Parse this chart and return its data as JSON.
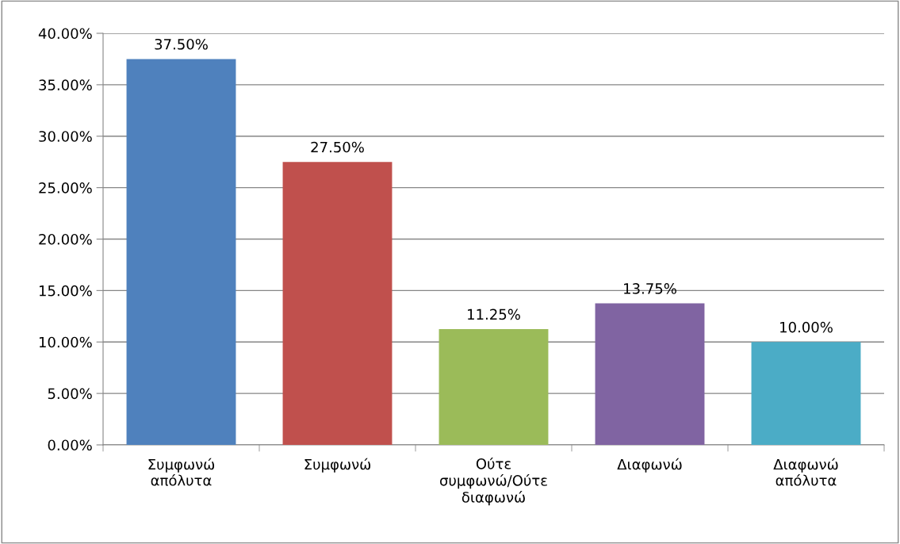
{
  "chart_data": {
    "type": "bar",
    "categories": [
      "Συμφωνώ\nαπόλυτα",
      "Συμφωνώ",
      "Ούτε\nσυμφωνώ/Ούτε\nδιαφωνώ",
      "Διαφωνώ",
      "Διαφωνώ\nαπόλυτα"
    ],
    "values": [
      37.5,
      27.5,
      11.25,
      13.75,
      10.0
    ],
    "colors": [
      "#4f81bd",
      "#c0504d",
      "#9bbb59",
      "#8064a2",
      "#4bacc6"
    ],
    "value_labels": [
      "37.50%",
      "27.50%",
      "11.25%",
      "13.75%",
      "10.00%"
    ],
    "ylim": [
      0,
      40
    ],
    "yticks": [
      {
        "value": 0,
        "label": "0.00%"
      },
      {
        "value": 5,
        "label": "5.00%"
      },
      {
        "value": 10,
        "label": "10.00%"
      },
      {
        "value": 15,
        "label": "15.00%"
      },
      {
        "value": 20,
        "label": "20.00%"
      },
      {
        "value": 25,
        "label": "25.00%"
      },
      {
        "value": 30,
        "label": "30.00%"
      },
      {
        "value": 35,
        "label": "35.00%"
      },
      {
        "value": 40,
        "label": "40.00%"
      }
    ],
    "grid": "y",
    "legend": false
  }
}
